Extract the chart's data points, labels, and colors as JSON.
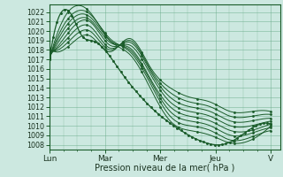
{
  "bg_color": "#cce8e0",
  "plot_bg_color": "#cce8e0",
  "grid_color": "#66aa88",
  "line_color": "#1a5c2a",
  "xlabel": "Pression niveau de la mer( hPa )",
  "ylim_min": 1007.5,
  "ylim_max": 1022.8,
  "yticks": [
    1008,
    1009,
    1010,
    1011,
    1012,
    1013,
    1014,
    1015,
    1016,
    1017,
    1018,
    1019,
    1020,
    1021,
    1022
  ],
  "xtick_labels": [
    "Lun",
    "Mar",
    "Mer",
    "Jeu",
    "V"
  ],
  "xtick_positions": [
    0,
    24,
    48,
    72,
    96
  ],
  "xlim_max": 100,
  "lines": [
    [
      1017.0,
      1022.2,
      1022.0,
      1019.0,
      1017.5,
      1014.0,
      1010.5,
      1009.5,
      1009.0,
      1008.2,
      1008.5,
      1010.0
    ],
    [
      1017.1,
      1021.5,
      1021.8,
      1019.2,
      1017.8,
      1014.5,
      1011.0,
      1010.0,
      1009.5,
      1008.5,
      1008.8,
      1009.5
    ],
    [
      1017.2,
      1021.0,
      1021.5,
      1019.0,
      1018.0,
      1014.8,
      1011.5,
      1010.5,
      1010.0,
      1009.0,
      1009.2,
      1009.8
    ],
    [
      1017.3,
      1020.5,
      1021.2,
      1018.8,
      1018.2,
      1015.0,
      1012.0,
      1011.0,
      1010.5,
      1009.5,
      1009.5,
      1010.2
    ],
    [
      1017.5,
      1020.0,
      1021.0,
      1018.5,
      1018.5,
      1015.5,
      1012.5,
      1011.5,
      1011.0,
      1010.0,
      1010.0,
      1010.5
    ],
    [
      1017.8,
      1019.5,
      1020.5,
      1018.2,
      1018.8,
      1015.8,
      1013.0,
      1012.0,
      1011.5,
      1010.5,
      1010.5,
      1010.8
    ],
    [
      1018.0,
      1019.0,
      1020.0,
      1018.0,
      1019.0,
      1016.0,
      1013.5,
      1012.5,
      1012.0,
      1011.0,
      1011.0,
      1011.2
    ],
    [
      1018.2,
      1018.5,
      1019.5,
      1017.8,
      1019.2,
      1016.2,
      1014.0,
      1013.0,
      1012.5,
      1011.5,
      1011.5,
      1011.5
    ]
  ],
  "marker_line": [
    1017.0,
    1022.2,
    1021.5,
    1019.5,
    1019.0,
    1018.5,
    1016.0,
    1013.5,
    1011.5,
    1010.0,
    1008.8,
    1008.2,
    1008.0,
    1008.5,
    1009.8,
    1010.2
  ],
  "marker_line_x": [
    0,
    6,
    10,
    14,
    18,
    22,
    30,
    38,
    46,
    54,
    62,
    68,
    74,
    80,
    88,
    96
  ]
}
